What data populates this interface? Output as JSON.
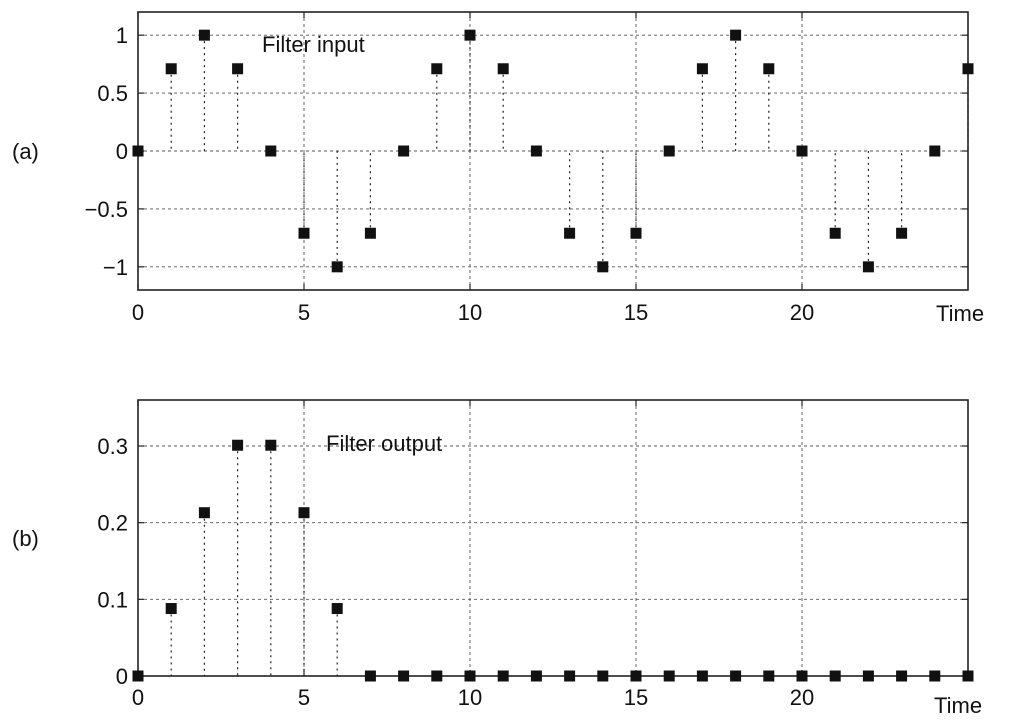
{
  "chart_data": [
    {
      "type": "scatter",
      "panel_label": "(a)",
      "annotation": "Filter input",
      "xlabel": "Time",
      "ylabel": "",
      "xlim": [
        0,
        25
      ],
      "ylim": [
        -1.2,
        1.2
      ],
      "xticks": [
        0,
        5,
        10,
        15,
        20
      ],
      "xtick_labels": [
        "0",
        "5",
        "10",
        "15",
        "20"
      ],
      "yticks": [
        1,
        0.5,
        0,
        -0.5,
        -1
      ],
      "ytick_labels": [
        "1",
        "0.5",
        "0",
        "−0.5",
        "−1"
      ],
      "grid": true,
      "markers": "filled squares with dotted stems",
      "x": [
        0,
        1,
        2,
        3,
        4,
        5,
        6,
        7,
        8,
        9,
        10,
        11,
        12,
        13,
        14,
        15,
        16,
        17,
        18,
        19,
        20,
        21,
        22,
        23,
        24,
        25
      ],
      "y": [
        0,
        0.71,
        1,
        0.71,
        0,
        -0.71,
        -1,
        -0.71,
        0,
        0.71,
        1,
        0.71,
        0,
        -0.71,
        -1,
        -0.71,
        0,
        0.71,
        1,
        0.71,
        0,
        -0.71,
        -1,
        -0.71,
        0,
        0.71
      ]
    },
    {
      "type": "scatter",
      "panel_label": "(b)",
      "annotation": "Filter output",
      "xlabel": "Time",
      "ylabel": "",
      "xlim": [
        0,
        25
      ],
      "ylim": [
        0,
        0.36
      ],
      "xticks": [
        0,
        5,
        10,
        15,
        20
      ],
      "xtick_labels": [
        "0",
        "5",
        "10",
        "15",
        "20"
      ],
      "yticks": [
        0.3,
        0.2,
        0.1,
        0
      ],
      "ytick_labels": [
        "0.3",
        "0.2",
        "0.1",
        "0"
      ],
      "grid": true,
      "markers": "filled squares with dotted stems",
      "x": [
        0,
        1,
        2,
        3,
        4,
        5,
        6,
        7,
        8,
        9,
        10,
        11,
        12,
        13,
        14,
        15,
        16,
        17,
        18,
        19,
        20,
        21,
        22,
        23,
        24,
        25
      ],
      "y": [
        0,
        0.088,
        0.213,
        0.301,
        0.301,
        0.213,
        0.088,
        0,
        0,
        0,
        0,
        0,
        0,
        0,
        0,
        0,
        0,
        0,
        0,
        0,
        0,
        0,
        0,
        0,
        0,
        0
      ]
    }
  ]
}
